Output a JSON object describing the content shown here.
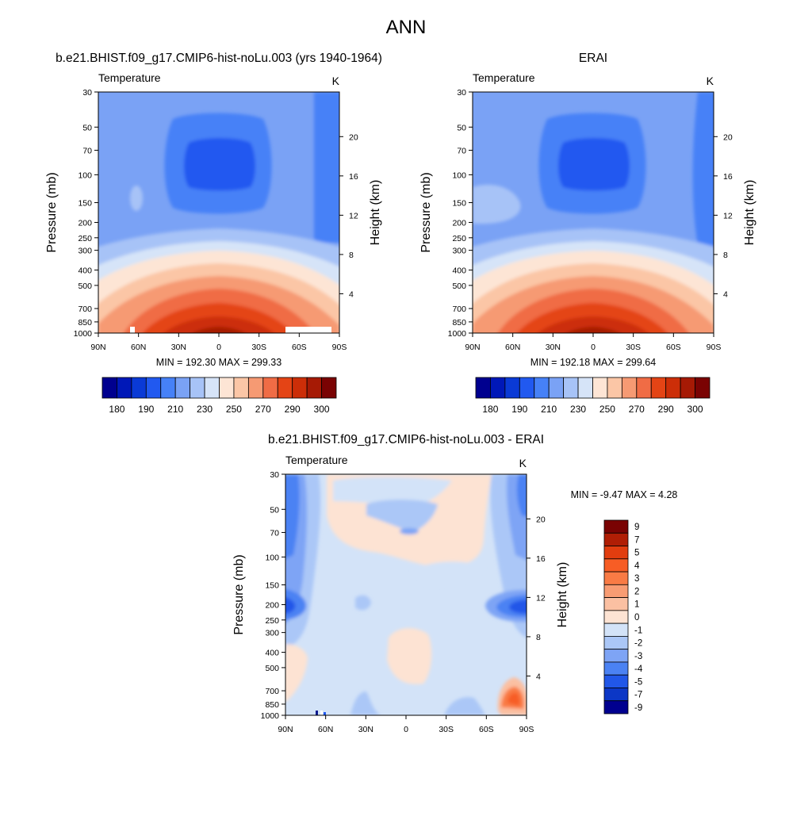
{
  "page_title": "ANN",
  "chart_data": [
    {
      "type": "heatmap",
      "title": "b.e21.BHIST.f09_g17.CMIP6-hist-noLu.003 (yrs 1940-1964)",
      "left_string": "Temperature",
      "right_string": "K",
      "ylabel": "Pressure (mb)",
      "right_axis_label": "Height (km)",
      "x_tick_labels": [
        "90N",
        "60N",
        "30N",
        "0",
        "30S",
        "60S",
        "90S"
      ],
      "y_tick_labels": [
        "30",
        "50",
        "70",
        "100",
        "150",
        "200",
        "250",
        "300",
        "400",
        "500",
        "700",
        "850",
        "1000"
      ],
      "height_tick_labels": [
        "4",
        "8",
        "12",
        "16",
        "20"
      ],
      "min": 192.3,
      "max": 299.33,
      "minmax_text": "MIN = 192.30  MAX = 299.33",
      "colorbar_labels": [
        "180",
        "190",
        "210",
        "230",
        "250",
        "270",
        "290",
        "300"
      ]
    },
    {
      "type": "heatmap",
      "title": "ERAI",
      "left_string": "Temperature",
      "right_string": "K",
      "ylabel": "Pressure (mb)",
      "right_axis_label": "Height (km)",
      "x_tick_labels": [
        "90N",
        "60N",
        "30N",
        "0",
        "30S",
        "60S",
        "90S"
      ],
      "y_tick_labels": [
        "30",
        "50",
        "70",
        "100",
        "150",
        "200",
        "250",
        "300",
        "400",
        "500",
        "700",
        "850",
        "1000"
      ],
      "height_tick_labels": [
        "4",
        "8",
        "12",
        "16",
        "20"
      ],
      "min": 192.18,
      "max": 299.64,
      "minmax_text": "MIN = 192.18  MAX = 299.64",
      "colorbar_labels": [
        "180",
        "190",
        "210",
        "230",
        "250",
        "270",
        "290",
        "300"
      ]
    },
    {
      "type": "heatmap",
      "title": "b.e21.BHIST.f09_g17.CMIP6-hist-noLu.003 - ERAI",
      "left_string": "Temperature",
      "right_string": "K",
      "ylabel": "Pressure (mb)",
      "right_axis_label": "Height (km)",
      "x_tick_labels": [
        "90N",
        "60N",
        "30N",
        "0",
        "30S",
        "60S",
        "90S"
      ],
      "y_tick_labels": [
        "30",
        "50",
        "70",
        "100",
        "150",
        "200",
        "250",
        "300",
        "400",
        "500",
        "700",
        "850",
        "1000"
      ],
      "height_tick_labels": [
        "4",
        "8",
        "12",
        "16",
        "20"
      ],
      "min": -9.47,
      "max": 4.28,
      "minmax_text": "MIN =  -9.47  MAX =   4.28",
      "colorbar_labels": [
        "9",
        "7",
        "5",
        "4",
        "3",
        "2",
        "1",
        "0",
        "-1",
        "-2",
        "-3",
        "-4",
        "-5",
        "-7",
        "-9"
      ]
    }
  ],
  "colors": {
    "abs": [
      "#00008f",
      "#0018b8",
      "#0a3ad6",
      "#2159f0",
      "#4681f7",
      "#7aa2f5",
      "#a7c3f7",
      "#d6e4f8",
      "#fde5d5",
      "#fbc6a6",
      "#f69a73",
      "#f06c45",
      "#e44415",
      "#cc2e08",
      "#a61a05",
      "#7a0303"
    ],
    "diff": [
      "#7a0303",
      "#b01e05",
      "#e13d0f",
      "#f75d25",
      "#f97b45",
      "#f89c73",
      "#fbc0a2",
      "#fde3d3",
      "#d3e3f8",
      "#abc7f7",
      "#7ea4f5",
      "#4b82f3",
      "#2157e8",
      "#0c37c6",
      "#00008f"
    ]
  }
}
